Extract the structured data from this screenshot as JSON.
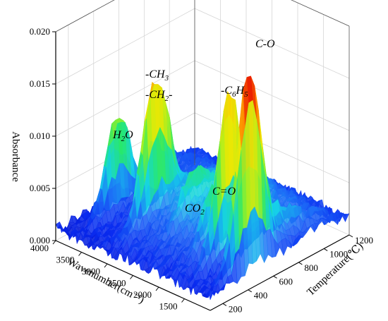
{
  "chart_data": {
    "type": "surface-3d",
    "zlabel": "Absorbance",
    "xlabel": "Wavenumber(cm⁻¹)",
    "ylabel": "Temperature(℃)",
    "z_ticks": [
      "0.000",
      "0.005",
      "0.010",
      "0.015",
      "0.020"
    ],
    "x_ticks": [
      "4000",
      "3500",
      "3000",
      "2500",
      "2000",
      "1500"
    ],
    "y_ticks": [
      "200",
      "400",
      "600",
      "800",
      "1000",
      "1200"
    ],
    "zlim": [
      0,
      0.02
    ],
    "xlim": [
      4000,
      1000
    ],
    "ylim": [
      100,
      1200
    ],
    "grid": true,
    "colormap": [
      "#0000b0",
      "#0a2cf0",
      "#1e6cf7",
      "#16d3e8",
      "#27e86a",
      "#a8f020",
      "#f6e600",
      "#ff7a00",
      "#e50000"
    ],
    "peaks": [
      {
        "wavenumber": 3650,
        "temperature": 450,
        "absorbance": 0.0092
      },
      {
        "wavenumber": 2930,
        "temperature": 450,
        "absorbance": 0.013
      },
      {
        "wavenumber": 2360,
        "temperature": 500,
        "absorbance": 0.0028
      },
      {
        "wavenumber": 1780,
        "temperature": 430,
        "absorbance": 0.0043
      },
      {
        "wavenumber": 1500,
        "temperature": 450,
        "absorbance": 0.0155
      },
      {
        "wavenumber": 1100,
        "temperature": 450,
        "absorbance": 0.019
      }
    ],
    "annotations": [
      {
        "base": "H",
        "sub": "2",
        "tail": "O",
        "at_wavenumber": 3650
      },
      {
        "base": "-CH",
        "sub": "3",
        "tail": "",
        "at_wavenumber": 2930
      },
      {
        "base": "-CH",
        "sub": "2",
        "tail": "-",
        "at_wavenumber": 2930
      },
      {
        "base": "CO",
        "sub": "2",
        "tail": "",
        "at_wavenumber": 2360
      },
      {
        "base": "C=O",
        "sub": "",
        "tail": "",
        "at_wavenumber": 1780
      },
      {
        "base": "-C",
        "sub": "6",
        "tail": "H",
        "sub2": "5",
        "at_wavenumber": 1500
      },
      {
        "base": "C-O",
        "sub": "",
        "tail": "",
        "at_wavenumber": 1100
      }
    ]
  }
}
